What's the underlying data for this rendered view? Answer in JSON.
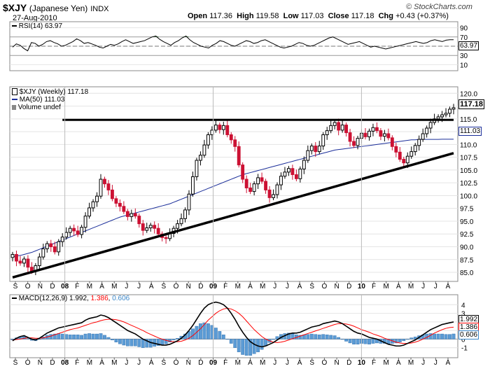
{
  "header": {
    "symbol": "$XJY",
    "name": "(Japanese Yen)",
    "exchange": "INDX",
    "brand": "© StockCharts.com",
    "date": "27-Aug-2010",
    "open_label": "Open",
    "open": "117.36",
    "high_label": "High",
    "high": "119.58",
    "low_label": "Low",
    "low": "117.03",
    "close_label": "Close",
    "close": "117.18",
    "chg_label": "Chg",
    "chg": "+0.43 (+0.37%)"
  },
  "rsi_panel": {
    "label": "RSI(14) 63.97",
    "current": "63.97"
  },
  "price_panel": {
    "label": "$XJY (Weekly) 117.18",
    "ma_label": "MA(50) 111.03",
    "volume_label": "Volume undef",
    "current": "117.18",
    "ma_current": "111.03"
  },
  "macd_panel": {
    "label": "MACD(12,26,9)",
    "v1": "1.992",
    "v2": "1.386",
    "v3": "0.606"
  },
  "axis": {
    "months": [
      "S",
      "O",
      "N",
      "D",
      "08",
      "F",
      "M",
      "A",
      "M",
      "J",
      "J",
      "A",
      "S",
      "O",
      "N",
      "D",
      "09",
      "F",
      "M",
      "A",
      "M",
      "J",
      "J",
      "A",
      "S",
      "O",
      "N",
      "D",
      "10",
      "F",
      "M",
      "A",
      "M",
      "J",
      "J",
      "A"
    ],
    "bold_months": [
      "08",
      "09",
      "10"
    ]
  },
  "colors": {
    "up": "#000000",
    "down": "#cc1133",
    "ma": "#1a2d99",
    "macd_signal": "#ff0000",
    "histogram": "#5b9bd5",
    "rsi_fill": "#3d7d3d",
    "trendline": "#000000"
  },
  "chart_data": [
    {
      "type": "line",
      "panel": "RSI",
      "ylim": [
        0,
        100
      ],
      "yticks": [
        10,
        30,
        50,
        70,
        90
      ],
      "reference_lines": [
        30,
        70
      ],
      "series": [
        {
          "name": "RSI(14)",
          "values": [
            48,
            55,
            52,
            45,
            40,
            58,
            56,
            50,
            54,
            60,
            62,
            58,
            55,
            50,
            52,
            56,
            60,
            66,
            62,
            56,
            58,
            55,
            52,
            48,
            46,
            50,
            54,
            52,
            55,
            60,
            64,
            60,
            56,
            58,
            60,
            62,
            66,
            70,
            72,
            65,
            60,
            56,
            52,
            58,
            62,
            68,
            72,
            64,
            58,
            54,
            50,
            48,
            46,
            52,
            56,
            62,
            60,
            56,
            52,
            50,
            54,
            58,
            62,
            60,
            56,
            58,
            62,
            64,
            60,
            56,
            52,
            48,
            46,
            48,
            50,
            54,
            58,
            56,
            52,
            50,
            52,
            56,
            60,
            64,
            68,
            70,
            66,
            62,
            58,
            54,
            56,
            58,
            60,
            56,
            52,
            48,
            50,
            48,
            46,
            44,
            46,
            48,
            50,
            52,
            54,
            56,
            58,
            60,
            58,
            56,
            58,
            62,
            64,
            62,
            60,
            63,
            64,
            63.97
          ]
        }
      ]
    },
    {
      "type": "candlestick",
      "panel": "Price (Weekly)",
      "ylim": [
        83.5,
        121
      ],
      "yticks": [
        85,
        87.5,
        90,
        92.5,
        95,
        97.5,
        100,
        102.5,
        105,
        107.5,
        110,
        112.5,
        115,
        117.5,
        120
      ],
      "close": [
        88.5,
        87.2,
        86.8,
        87.6,
        86.0,
        85.2,
        86.3,
        88.0,
        89.6,
        90.6,
        90.0,
        89.0,
        91.0,
        91.9,
        92.8,
        93.6,
        93.1,
        92.4,
        93.8,
        96.0,
        97.6,
        98.8,
        99.9,
        103.2,
        102.3,
        101.1,
        99.4,
        98.5,
        97.9,
        96.9,
        95.9,
        96.5,
        96.0,
        94.5,
        93.2,
        93.7,
        94.2,
        93.6,
        92.5,
        91.8,
        91.6,
        92.6,
        93.6,
        94.5,
        95.5,
        97.2,
        100.3,
        103.7,
        106.9,
        107.9,
        109.9,
        111.9,
        112.8,
        113.8,
        112.9,
        113.7,
        111.9,
        110.9,
        109.6,
        106.0,
        103.2,
        101.5,
        100.8,
        102.3,
        103.5,
        102.8,
        101.1,
        99.6,
        100.2,
        102.1,
        103.8,
        104.6,
        105.3,
        104.1,
        103.3,
        105.2,
        106.9,
        108.8,
        109.7,
        108.6,
        109.7,
        111.9,
        112.7,
        113.7,
        114.3,
        112.8,
        113.8,
        112.3,
        110.6,
        109.8,
        111.2,
        112.2,
        111.5,
        112.6,
        113.3,
        112.7,
        111.6,
        112.1,
        111.3,
        109.6,
        108.5,
        107.1,
        106.4,
        107.7,
        108.6,
        109.8,
        111.0,
        112.1,
        113.2,
        114.3,
        115.0,
        115.4,
        115.8,
        116.1,
        116.9,
        117.18
      ],
      "ma50": [
        88.0,
        88.2,
        88.3,
        88.5,
        88.7,
        88.9,
        89.2,
        89.5,
        89.8,
        90.1,
        90.4,
        90.7,
        91.0,
        91.3,
        91.6,
        91.9,
        92.2,
        92.5,
        92.8,
        93.1,
        93.4,
        93.7,
        94.0,
        94.3,
        94.6,
        94.9,
        95.2,
        95.5,
        95.8,
        96.0,
        96.2,
        96.4,
        96.6,
        96.8,
        97.0,
        97.2,
        97.4,
        97.6,
        97.8,
        98.0,
        98.2,
        98.4,
        98.7,
        99.0,
        99.3,
        99.6,
        99.9,
        100.2,
        100.5,
        100.8,
        101.1,
        101.4,
        101.7,
        102.0,
        102.3,
        102.6,
        102.9,
        103.2,
        103.5,
        103.8,
        104.1,
        104.3,
        104.5,
        104.7,
        104.9,
        105.1,
        105.3,
        105.5,
        105.7,
        105.9,
        106.1,
        106.3,
        106.5,
        106.7,
        106.9,
        107.1,
        107.3,
        107.5,
        107.7,
        107.9,
        108.1,
        108.3,
        108.5,
        108.7,
        108.9,
        109.0,
        109.1,
        109.2,
        109.3,
        109.4,
        109.5,
        109.6,
        109.7,
        109.8,
        109.9,
        110.0,
        110.1,
        110.2,
        110.3,
        110.4,
        110.5,
        110.6,
        110.7,
        110.8,
        110.9,
        110.9,
        111.0,
        111.0,
        111.0,
        111.0,
        111.0,
        111.0,
        111.03,
        111.03,
        111.03,
        111.03
      ],
      "resistance_line": {
        "from": [
          13,
          114.8
        ],
        "to": [
          115,
          114.8
        ]
      },
      "support_line": {
        "from": [
          0,
          84.0
        ],
        "to": [
          115,
          108.3
        ]
      }
    },
    {
      "type": "line",
      "panel": "MACD(12,26,9)",
      "ylim": [
        -2,
        5
      ],
      "yticks": [
        -1,
        0,
        1,
        2,
        3,
        4
      ],
      "series": [
        {
          "name": "MACD",
          "values": [
            -0.2,
            0.1,
            0.3,
            0.4,
            0.2,
            0.0,
            -0.1,
            0.1,
            0.4,
            0.7,
            0.9,
            1.1,
            1.3,
            1.4,
            1.5,
            1.6,
            1.7,
            1.8,
            1.9,
            2.2,
            2.4,
            2.5,
            2.6,
            2.8,
            2.7,
            2.5,
            2.2,
            1.9,
            1.6,
            1.3,
            1.0,
            0.8,
            0.6,
            0.3,
            0.0,
            -0.2,
            -0.4,
            -0.5,
            -0.6,
            -0.7,
            -0.7,
            -0.6,
            -0.4,
            -0.2,
            0.1,
            0.5,
            1.0,
            1.6,
            2.3,
            3.0,
            3.6,
            4.0,
            4.2,
            4.3,
            4.2,
            4.0,
            3.6,
            3.0,
            2.3,
            1.5,
            0.8,
            0.2,
            -0.3,
            -0.6,
            -0.8,
            -0.9,
            -0.8,
            -0.6,
            -0.4,
            -0.1,
            0.2,
            0.4,
            0.6,
            0.7,
            0.7,
            0.8,
            1.0,
            1.2,
            1.4,
            1.5,
            1.6,
            1.8,
            1.9,
            2.0,
            2.1,
            2.0,
            1.8,
            1.5,
            1.2,
            0.9,
            0.7,
            0.6,
            0.4,
            0.2,
            0.1,
            0.0,
            -0.2,
            -0.4,
            -0.6,
            -0.7,
            -0.8,
            -0.8,
            -0.7,
            -0.5,
            -0.3,
            -0.1,
            0.2,
            0.5,
            0.8,
            1.1,
            1.3,
            1.5,
            1.7,
            1.8,
            1.9,
            1.992
          ]
        },
        {
          "name": "Signal",
          "values": [
            -0.1,
            -0.05,
            0.0,
            0.1,
            0.15,
            0.15,
            0.1,
            0.1,
            0.15,
            0.25,
            0.35,
            0.5,
            0.65,
            0.8,
            0.95,
            1.1,
            1.2,
            1.3,
            1.45,
            1.6,
            1.75,
            1.9,
            2.0,
            2.15,
            2.25,
            2.3,
            2.3,
            2.25,
            2.15,
            2.0,
            1.8,
            1.6,
            1.4,
            1.2,
            1.0,
            0.75,
            0.55,
            0.35,
            0.15,
            0.0,
            -0.15,
            -0.25,
            -0.3,
            -0.3,
            -0.25,
            -0.1,
            0.1,
            0.4,
            0.8,
            1.2,
            1.7,
            2.2,
            2.6,
            3.0,
            3.3,
            3.5,
            3.6,
            3.5,
            3.3,
            3.0,
            2.6,
            2.1,
            1.6,
            1.1,
            0.7,
            0.3,
            0.0,
            -0.2,
            -0.35,
            -0.4,
            -0.35,
            -0.25,
            -0.1,
            0.05,
            0.2,
            0.35,
            0.5,
            0.65,
            0.8,
            0.95,
            1.1,
            1.25,
            1.4,
            1.55,
            1.7,
            1.8,
            1.8,
            1.75,
            1.65,
            1.5,
            1.3,
            1.1,
            0.95,
            0.8,
            0.6,
            0.45,
            0.3,
            0.1,
            -0.05,
            -0.2,
            -0.35,
            -0.45,
            -0.5,
            -0.5,
            -0.45,
            -0.35,
            -0.2,
            0.0,
            0.2,
            0.45,
            0.7,
            0.9,
            1.1,
            1.25,
            1.35,
            1.386
          ]
        }
      ],
      "histogram_current": 0.606
    }
  ]
}
